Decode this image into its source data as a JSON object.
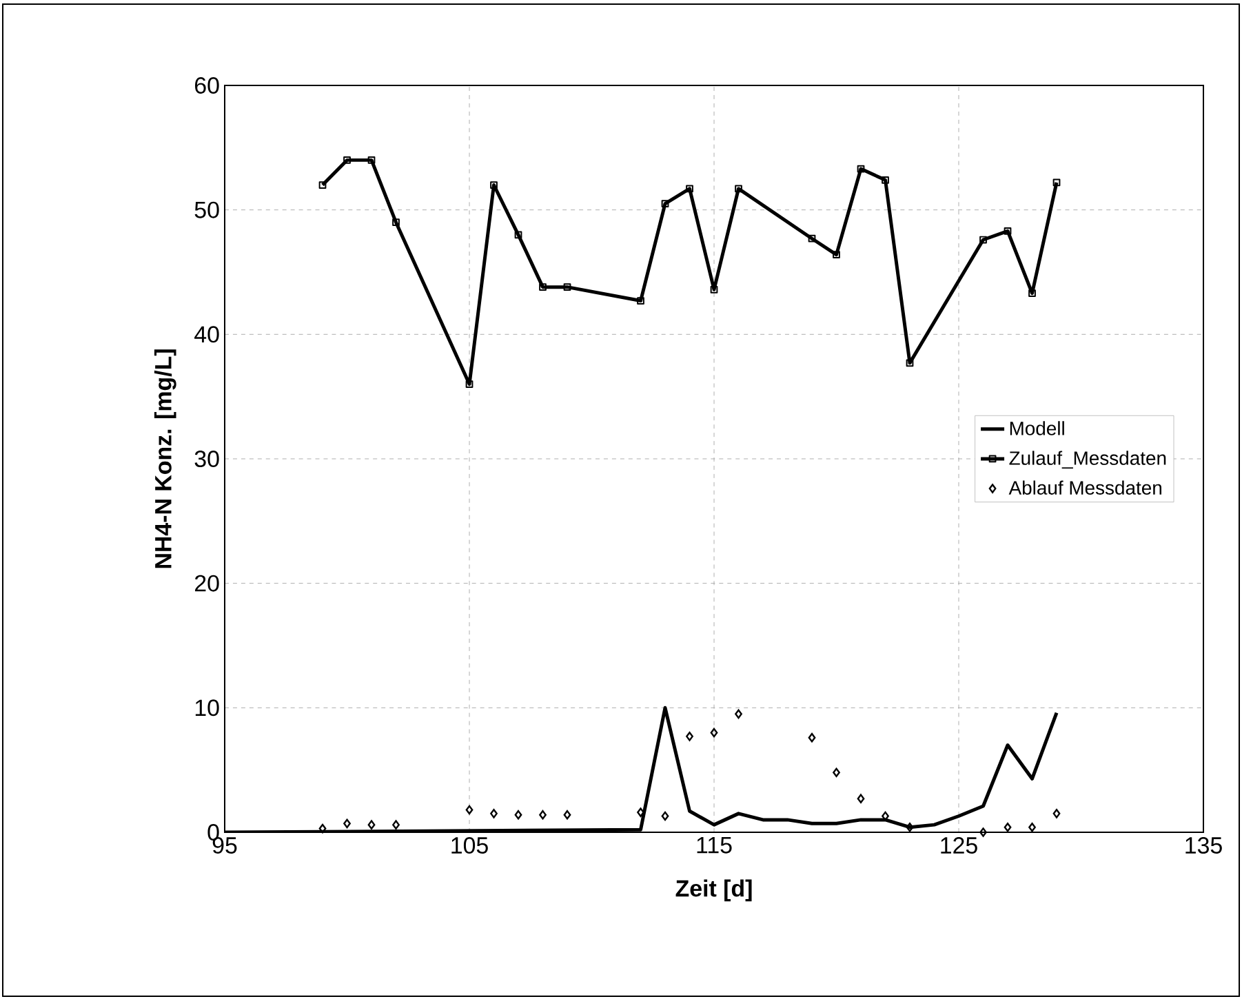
{
  "chart_data": {
    "type": "line",
    "xlabel": "Zeit    [d]",
    "ylabel": "NH4-N Konz.   [mg/L]",
    "xlim": [
      95,
      135
    ],
    "xticks": [
      95,
      105,
      115,
      125,
      135
    ],
    "ylim": [
      0,
      60
    ],
    "yticks": [
      0,
      10,
      20,
      30,
      40,
      50,
      60
    ],
    "grid": true,
    "legend": "right",
    "line_style": "solid",
    "series": [
      {
        "name": "Modell",
        "color": "#000000",
        "marker": "none",
        "x": [
          95,
          112,
          113,
          114,
          115,
          116,
          117,
          118,
          119,
          120,
          121,
          122,
          123,
          124,
          125,
          126,
          127,
          128,
          129
        ],
        "values": [
          0,
          0.2,
          10,
          1.7,
          0.6,
          1.5,
          1,
          1,
          0.7,
          0.7,
          1,
          1,
          0.4,
          0.6,
          1.3,
          2.1,
          7,
          4.3,
          9.6
        ]
      },
      {
        "name": "Zulauf_Messdaten",
        "color": "#000000",
        "marker": "square",
        "x": [
          99,
          100,
          101,
          102,
          105,
          106,
          107,
          108,
          109,
          112,
          113,
          114,
          115,
          116,
          119,
          120,
          121,
          122,
          123,
          126,
          127,
          128,
          129
        ],
        "values": [
          52,
          54,
          54,
          49,
          36,
          52,
          48,
          43.8,
          43.8,
          42.7,
          50.5,
          51.7,
          43.6,
          51.7,
          47.7,
          46.4,
          53.3,
          52.4,
          37.7,
          47.6,
          48.3,
          43.3,
          52.2
        ]
      },
      {
        "name": "Ablauf Messdaten",
        "type": "scatter",
        "color": "#000000",
        "marker": "diamond",
        "x": [
          99,
          100,
          101,
          102,
          105,
          106,
          107,
          108,
          109,
          112,
          113,
          114,
          115,
          116,
          119,
          120,
          121,
          122,
          123,
          126,
          127,
          128,
          129
        ],
        "values": [
          0.3,
          0.7,
          0.6,
          0.6,
          1.8,
          1.5,
          1.4,
          1.4,
          1.4,
          1.6,
          1.3,
          7.7,
          8,
          9.5,
          7.6,
          4.8,
          2.7,
          1.3,
          0.4,
          0,
          0.4,
          0.4,
          1.5
        ]
      }
    ]
  }
}
